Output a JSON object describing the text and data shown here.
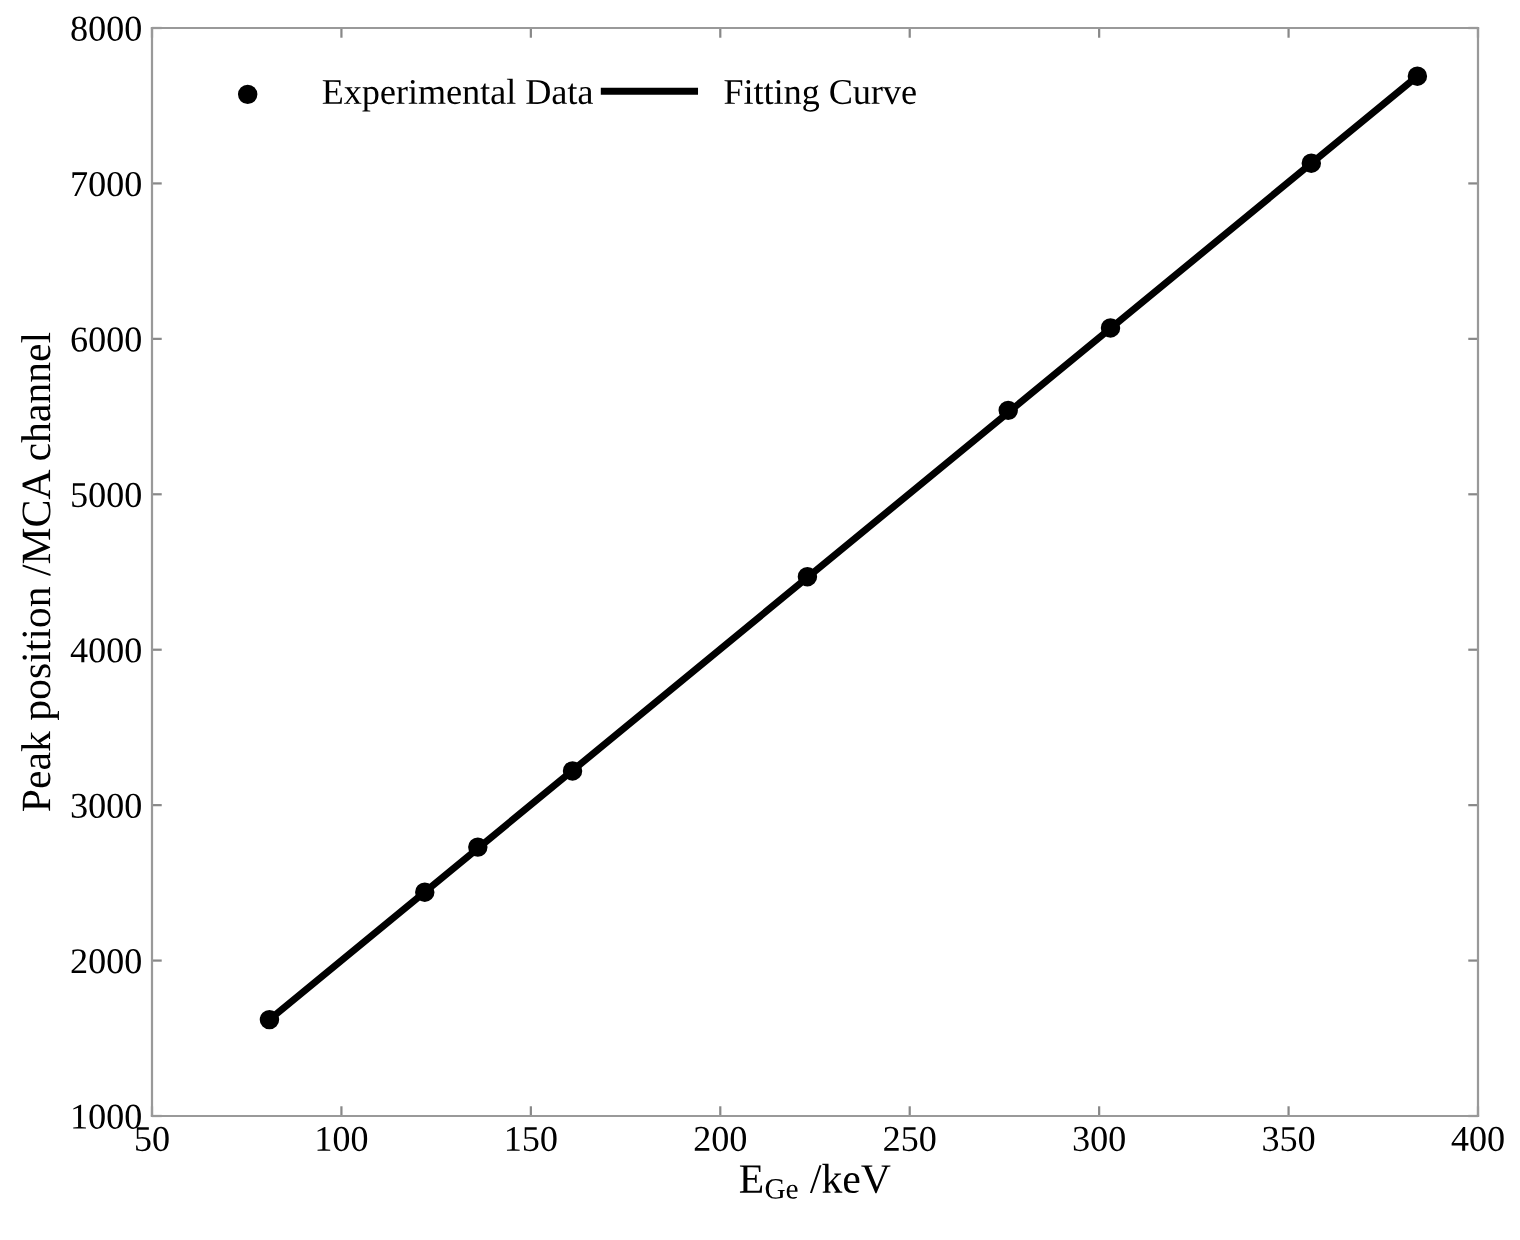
{
  "chart_data": {
    "type": "scatter",
    "xlabel": "E$_{Ge}$ /keV",
    "ylabel": "Peak position /MCA channel",
    "xlim": [
      50,
      400
    ],
    "xticks": [
      50,
      100,
      150,
      200,
      250,
      300,
      350,
      400
    ],
    "ylim": [
      1000,
      8000
    ],
    "yticks": [
      1000,
      2000,
      3000,
      4000,
      5000,
      6000,
      7000,
      8000
    ],
    "grid": false,
    "legend": "top left",
    "series": [
      {
        "name": "Experimental Data",
        "color": "#000000",
        "marker": "circle",
        "x": [
          81,
          122,
          136,
          161,
          223,
          276,
          303,
          356,
          384
        ],
        "values": [
          1620,
          2440,
          2730,
          3220,
          4470,
          5540,
          6070,
          7130,
          7690
        ]
      },
      {
        "name": "Fitting Curve",
        "type": "line",
        "color": "#000000",
        "line_style": "solid",
        "x": [
          81,
          384
        ],
        "values": [
          1620,
          7690
        ]
      }
    ]
  }
}
